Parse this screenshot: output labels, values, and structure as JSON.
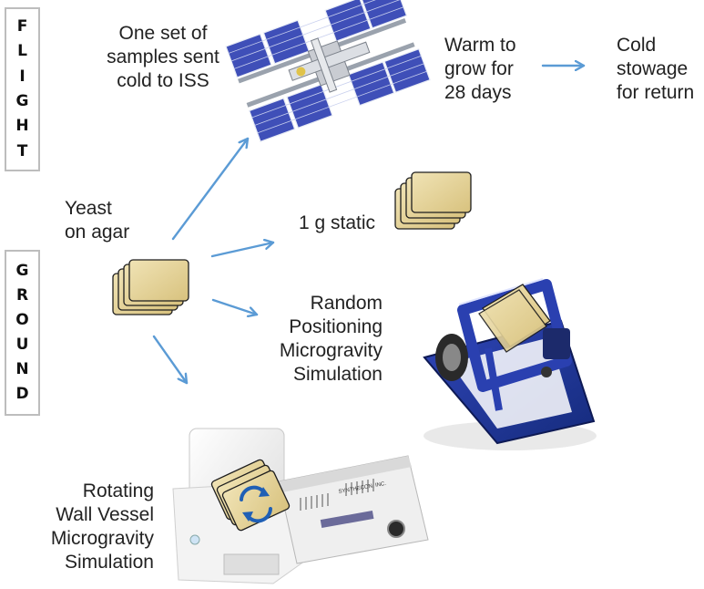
{
  "sidebars": {
    "flight": [
      "F",
      "L",
      "I",
      "G",
      "H",
      "T"
    ],
    "ground": [
      "G",
      "R",
      "O",
      "U",
      "N",
      "D"
    ]
  },
  "labels": {
    "flight_samples": [
      "One set of",
      "samples sent",
      "cold to ISS"
    ],
    "warm": [
      "Warm to",
      "grow for",
      "28 days"
    ],
    "cold": [
      "Cold",
      "stowage",
      "for return"
    ],
    "yeast": [
      "Yeast",
      "on agar"
    ],
    "static": "1 g static",
    "rpm": [
      "Random",
      "Positioning",
      "Microgravity",
      "Simulation"
    ],
    "rwv": [
      "Rotating",
      "Wall Vessel",
      "Microgravity",
      "Simulation"
    ],
    "device_brand": "SYNTHECON, INC."
  },
  "colors": {
    "arrow": "#5b9bd5",
    "plate_fill": "#e9d9a6",
    "plate_edge": "#1e1e1e",
    "rpm_frame": "#1f3d9e",
    "solar_panel": "#3f4fb8"
  }
}
